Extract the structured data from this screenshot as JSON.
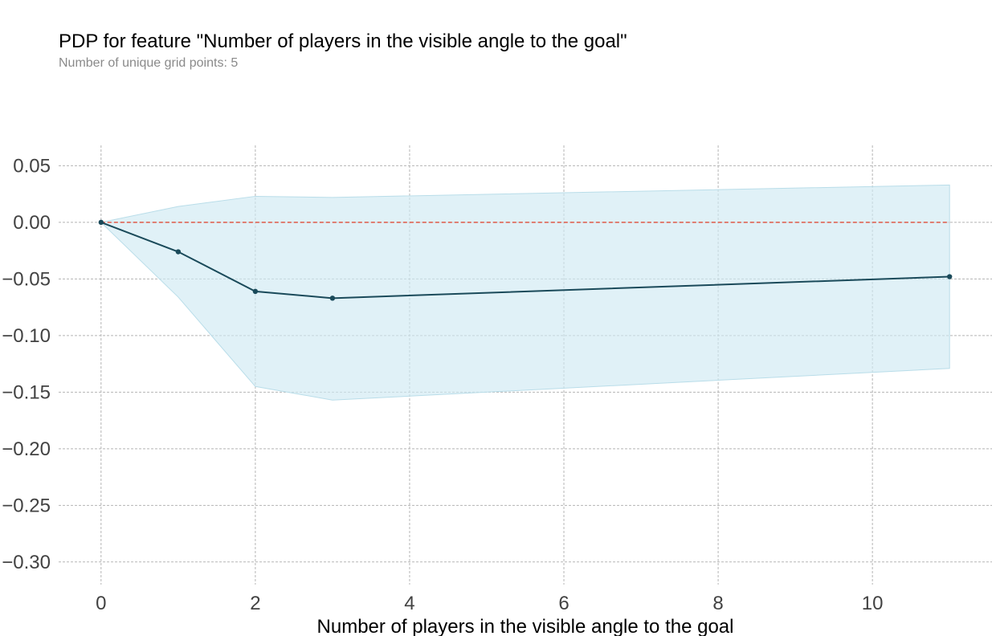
{
  "chart_data": {
    "type": "line",
    "title": "PDP for feature \"Number of players in the visible angle to the goal\"",
    "subtitle": "Number of unique grid points: 5",
    "xlabel": "Number of players in the visible angle to the goal",
    "ylabel": "",
    "xlim": [
      -0.55,
      11.55
    ],
    "ylim": [
      -0.32,
      0.068
    ],
    "xticks": [
      0,
      2,
      4,
      6,
      8,
      10
    ],
    "xtick_labels": [
      "0",
      "2",
      "4",
      "6",
      "8",
      "10"
    ],
    "yticks": [
      0.05,
      0.0,
      -0.05,
      -0.1,
      -0.15,
      -0.2,
      -0.25,
      -0.3
    ],
    "ytick_labels": [
      "0.05",
      "0.00",
      "−0.05",
      "−0.10",
      "−0.15",
      "−0.20",
      "−0.25",
      "−0.30"
    ],
    "grid": true,
    "series": [
      {
        "name": "pdp",
        "x": [
          0,
          1,
          2,
          3,
          11
        ],
        "values": [
          0.0,
          -0.026,
          -0.061,
          -0.067,
          -0.048
        ],
        "color": "#1a4a5a"
      }
    ],
    "band": {
      "name": "pdp confidence band",
      "x": [
        0,
        1,
        2,
        3,
        11
      ],
      "upper": [
        0.0,
        0.014,
        0.023,
        0.022,
        0.033
      ],
      "lower": [
        0.0,
        -0.066,
        -0.145,
        -0.157,
        -0.129
      ],
      "color": "#cfe9f3"
    },
    "reference_line": {
      "y": 0.0,
      "color": "#e05a47"
    }
  }
}
